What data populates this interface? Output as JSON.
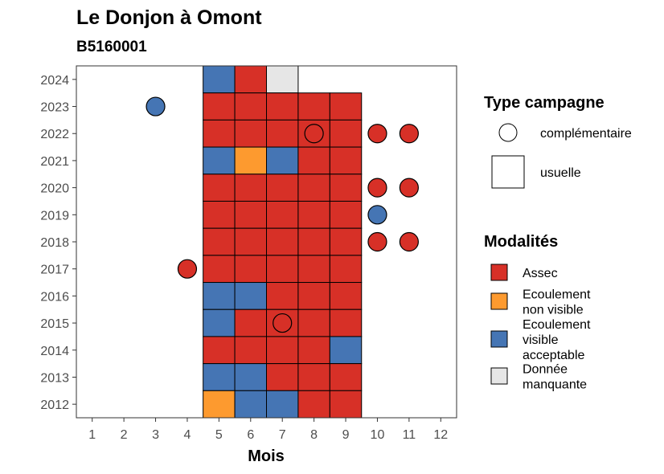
{
  "chart_data": {
    "type": "heatmap",
    "title": "Le Donjon à Omont",
    "subtitle": "B5160001",
    "xlabel": "Mois",
    "ylabel": "",
    "x_ticks": [
      "1",
      "2",
      "3",
      "4",
      "5",
      "6",
      "7",
      "8",
      "9",
      "10",
      "11",
      "12"
    ],
    "y_ticks": [
      "2012",
      "2013",
      "2014",
      "2015",
      "2016",
      "2017",
      "2018",
      "2019",
      "2020",
      "2021",
      "2022",
      "2023",
      "2024"
    ],
    "xlim": [
      0.5,
      12.5
    ],
    "ylim": [
      2011.5,
      2024.5
    ],
    "grid": false,
    "legend_placement": "right",
    "colors": {
      "Assec": "#d73027",
      "Ecoulement non visible": "#fd9a2f",
      "Ecoulement visible acceptable": "#4575b4",
      "Donnée manquante": "#e6e6e6"
    },
    "legend_shape": {
      "title": "Type campagne",
      "entries": [
        {
          "label": "complémentaire",
          "shape": "circle"
        },
        {
          "label": "usuelle",
          "shape": "square"
        }
      ]
    },
    "legend_fill": {
      "title": "Modalités",
      "entries": [
        {
          "key": "Assec",
          "lines": [
            "Assec"
          ]
        },
        {
          "key": "Ecoulement non visible",
          "lines": [
            "Ecoulement",
            "non visible"
          ]
        },
        {
          "key": "Ecoulement visible acceptable",
          "lines": [
            "Ecoulement",
            "visible",
            "acceptable"
          ]
        },
        {
          "key": "Donnée manquante",
          "lines": [
            "Donnée",
            "manquante"
          ]
        }
      ]
    },
    "usuelle": [
      {
        "year": 2024,
        "months": {
          "5": "Ecoulement visible acceptable",
          "6": "Assec",
          "7": "Donnée manquante"
        }
      },
      {
        "year": 2023,
        "months": {
          "5": "Assec",
          "6": "Assec",
          "7": "Assec",
          "8": "Assec",
          "9": "Assec"
        }
      },
      {
        "year": 2022,
        "months": {
          "5": "Assec",
          "6": "Assec",
          "7": "Assec",
          "8": "Assec",
          "9": "Assec"
        }
      },
      {
        "year": 2021,
        "months": {
          "5": "Ecoulement visible acceptable",
          "6": "Ecoulement non visible",
          "7": "Ecoulement visible acceptable",
          "8": "Assec",
          "9": "Assec"
        }
      },
      {
        "year": 2020,
        "months": {
          "5": "Assec",
          "6": "Assec",
          "7": "Assec",
          "8": "Assec",
          "9": "Assec"
        }
      },
      {
        "year": 2019,
        "months": {
          "5": "Assec",
          "6": "Assec",
          "7": "Assec",
          "8": "Assec",
          "9": "Assec"
        }
      },
      {
        "year": 2018,
        "months": {
          "5": "Assec",
          "6": "Assec",
          "7": "Assec",
          "8": "Assec",
          "9": "Assec"
        }
      },
      {
        "year": 2017,
        "months": {
          "5": "Assec",
          "6": "Assec",
          "7": "Assec",
          "8": "Assec",
          "9": "Assec"
        }
      },
      {
        "year": 2016,
        "months": {
          "5": "Ecoulement visible acceptable",
          "6": "Ecoulement visible acceptable",
          "7": "Assec",
          "8": "Assec",
          "9": "Assec"
        }
      },
      {
        "year": 2015,
        "months": {
          "5": "Ecoulement visible acceptable",
          "6": "Assec",
          "7": "Assec",
          "8": "Assec",
          "9": "Assec"
        }
      },
      {
        "year": 2014,
        "months": {
          "5": "Assec",
          "6": "Assec",
          "7": "Assec",
          "8": "Assec",
          "9": "Ecoulement visible acceptable"
        }
      },
      {
        "year": 2013,
        "months": {
          "5": "Ecoulement visible acceptable",
          "6": "Ecoulement visible acceptable",
          "7": "Assec",
          "8": "Assec",
          "9": "Assec"
        }
      },
      {
        "year": 2012,
        "months": {
          "5": "Ecoulement non visible",
          "6": "Ecoulement visible acceptable",
          "7": "Ecoulement visible acceptable",
          "8": "Assec",
          "9": "Assec"
        }
      }
    ],
    "complementaire": [
      {
        "year": 2023,
        "month": 3,
        "value": "Ecoulement visible acceptable"
      },
      {
        "year": 2022,
        "month": 8,
        "value": "Assec"
      },
      {
        "year": 2022,
        "month": 10,
        "value": "Assec"
      },
      {
        "year": 2022,
        "month": 11,
        "value": "Assec"
      },
      {
        "year": 2020,
        "month": 10,
        "value": "Assec"
      },
      {
        "year": 2020,
        "month": 11,
        "value": "Assec"
      },
      {
        "year": 2019,
        "month": 10,
        "value": "Ecoulement visible acceptable"
      },
      {
        "year": 2018,
        "month": 10,
        "value": "Assec"
      },
      {
        "year": 2018,
        "month": 11,
        "value": "Assec"
      },
      {
        "year": 2017,
        "month": 4,
        "value": "Assec"
      },
      {
        "year": 2015,
        "month": 7,
        "value": "Assec"
      }
    ]
  }
}
